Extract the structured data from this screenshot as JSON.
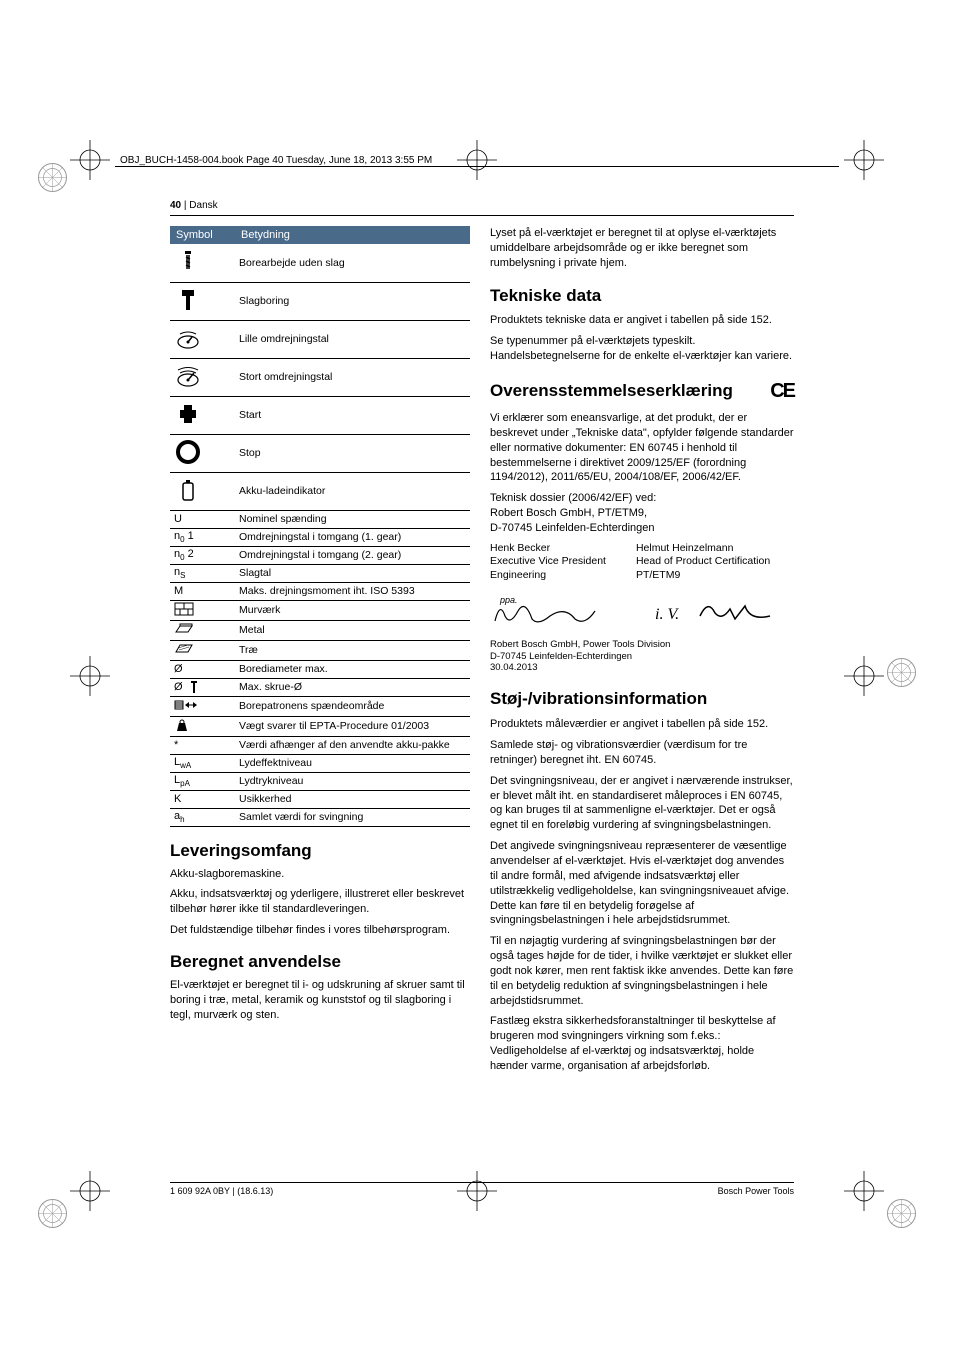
{
  "header": {
    "file_info": "OBJ_BUCH-1458-004.book  Page 40  Tuesday, June 18, 2013  3:55 PM",
    "page_num": "40",
    "lang": "Dansk"
  },
  "table": {
    "head_symbol": "Symbol",
    "head_meaning": "Betydning",
    "rows": [
      {
        "icon": "drill-no-hammer",
        "text": "Borearbejde uden slag"
      },
      {
        "icon": "hammer-drill",
        "text": "Slagboring"
      },
      {
        "icon": "speed-low",
        "text": "Lille omdrejningstal"
      },
      {
        "icon": "speed-high",
        "text": "Stort omdrejningstal"
      },
      {
        "icon": "power-on",
        "text": "Start"
      },
      {
        "icon": "power-off",
        "text": "Stop"
      },
      {
        "icon": "battery",
        "text": "Akku-ladeindikator"
      }
    ],
    "small_rows": [
      {
        "sym": "U",
        "text": "Nominel spænding"
      },
      {
        "sym": "n₀ 1",
        "text": "Omdrejningstal i tomgang (1. gear)"
      },
      {
        "sym": "n₀ 2",
        "text": "Omdrejningstal i tomgang (2. gear)"
      },
      {
        "sym": "n_S",
        "text": "Slagtal"
      },
      {
        "sym": "M",
        "text": "Maks. drejningsmoment iht. ISO 5393"
      },
      {
        "sym": "brick-icon",
        "text": "Murværk"
      },
      {
        "sym": "metal-icon",
        "text": "Metal"
      },
      {
        "sym": "wood-icon",
        "text": "Træ"
      },
      {
        "sym": "Ø",
        "text": "Borediameter max."
      },
      {
        "sym": "Ø screw",
        "text": "Max. skrue-Ø"
      },
      {
        "sym": "chuck-icon",
        "text": "Borepatronens spændeområde"
      },
      {
        "sym": "weight-icon",
        "text": "Vægt svarer til EPTA-Procedure 01/2003"
      },
      {
        "sym": "*",
        "text": "Værdi afhænger af den anvendte akku-pakke"
      },
      {
        "sym": "L_wA",
        "text": "Lydeffektniveau"
      },
      {
        "sym": "L_pA",
        "text": "Lydtrykniveau"
      },
      {
        "sym": "K",
        "text": "Usikkerhed"
      },
      {
        "sym": "a_h",
        "text": "Samlet værdi for svingning"
      }
    ]
  },
  "left": {
    "h_leveringsomfang": "Leveringsomfang",
    "p_lev1": "Akku-slagboremaskine.",
    "p_lev2": "Akku, indsatsværktøj og yderligere, illustreret eller beskrevet tilbehør hører ikke til standardleveringen.",
    "p_lev3": "Det fuldstændige tilbehør findes i vores tilbehørsprogram.",
    "h_beregnet": "Beregnet anvendelse",
    "p_ber1": "El-værktøjet er beregnet til i- og udskruning af skruer samt til boring i træ, metal, keramik og kunststof og til slagboring i tegl, murværk og sten."
  },
  "right": {
    "p_lys": "Lyset på el-værktøjet er beregnet til at oplyse el-værktøjets umiddelbare arbejdsområde og er ikke beregnet som rumbelysning i private hjem.",
    "h_tekniske": "Tekniske data",
    "p_tek1": "Produktets tekniske data er angivet i tabellen på side 152.",
    "p_tek2": "Se typenummer på el-værktøjets typeskilt. Handelsbetegnelserne for de enkelte el-værktøjer kan variere.",
    "h_overens": "Overensstemmelseserklæring",
    "p_ov1": "Vi erklærer som eneansvarlige, at det produkt, der er beskrevet under „Tekniske data\", opfylder følgende standarder eller normative dokumenter: EN 60745 i henhold til bestemmelserne i direktivet 2009/125/EF (forordning 1194/2012), 2011/65/EU, 2004/108/EF, 2006/42/EF.",
    "p_ov2": "Teknisk dossier (2006/42/EF) ved:",
    "p_ov3": "Robert Bosch GmbH, PT/ETM9,",
    "p_ov4": "D-70745 Leinfelden-Echterdingen",
    "sig1_name": "Henk Becker",
    "sig1_title": "Executive Vice President",
    "sig1_dept": "Engineering",
    "sig2_name": "Helmut Heinzelmann",
    "sig2_title": "Head of Product Certification",
    "sig2_dept": "PT/ETM9",
    "sig_company": "Robert Bosch GmbH, Power Tools Division",
    "sig_addr": "D-70745 Leinfelden-Echterdingen",
    "sig_date": "30.04.2013",
    "h_stoj": "Støj-/vibrationsinformation",
    "p_st1": "Produktets måleværdier er angivet i tabellen på side 152.",
    "p_st2": "Samlede støj- og vibrationsværdier (værdisum for tre retninger) beregnet iht. EN 60745.",
    "p_st3": "Det svingningsniveau, der er angivet i nærværende instrukser, er blevet målt iht. en standardiseret måleproces i EN 60745, og kan bruges til at sammenligne el-værktøjer. Det er også egnet til en foreløbig vurdering af svingningsbelastningen.",
    "p_st4": "Det angivede svingningsniveau repræsenterer de væsentlige anvendelser af el-værktøjet. Hvis el-værktøjet dog anvendes til andre formål, med afvigende indsatsværktøj eller utilstrækkelig vedligeholdelse, kan svingningsniveauet afvige. Dette kan føre til en betydelig forøgelse af svingningsbelastningen i hele arbejdstidsrummet.",
    "p_st5": "Til en nøjagtig vurdering af svingningsbelastningen bør der også tages højde for de tider, i hvilke værktøjet er slukket eller godt nok kører, men rent faktisk ikke anvendes. Dette kan føre til en betydelig reduktion af svingningsbelastningen i hele arbejdstidsrummet.",
    "p_st6": "Fastlæg ekstra sikkerhedsforanstaltninger til beskyttelse af brugeren mod svingningers virkning som f.eks.: Vedligeholdelse af el-værktøj og indsatsværktøj, holde hænder varme, organisation af arbejdsforløb."
  },
  "footer": {
    "left": "1 609 92A 0BY | (18.6.13)",
    "right": "Bosch Power Tools"
  },
  "colors": {
    "table_header_bg": "#4a6a8a",
    "table_header_fg": "#ffffff",
    "text": "#000000"
  }
}
